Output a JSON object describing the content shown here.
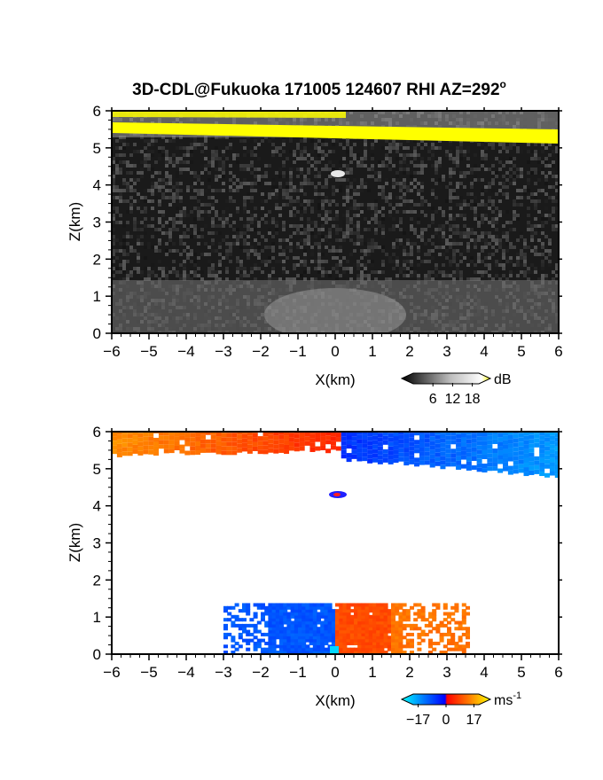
{
  "title": "3D-CDL@Fukuoka 171005 124607 RHI AZ=292",
  "title_superscript": "o",
  "chart_data": [
    {
      "type": "heatmap",
      "quantity": "reflectivity",
      "xlabel": "X(km)",
      "ylabel": "Z(km)",
      "xlim": [
        -6,
        6
      ],
      "ylim": [
        0,
        6
      ],
      "x_ticks": [
        "-6",
        "-5",
        "-4",
        "-3",
        "-2",
        "-1",
        "0",
        "1",
        "2",
        "3",
        "4",
        "5",
        "6"
      ],
      "y_ticks": [
        "0",
        "1",
        "2",
        "3",
        "4",
        "5",
        "6"
      ],
      "colorbar": {
        "unit": "dB",
        "ticks": [
          "6",
          "12",
          "18"
        ],
        "tick_values": [
          6,
          12,
          18
        ],
        "range": [
          0,
          20
        ],
        "colors": [
          "#000000",
          "#ffffff",
          "#ffff00"
        ]
      },
      "features": [
        {
          "kind": "layer",
          "z_top": 6.0,
          "z_bottom": 5.2,
          "x_range": [
            -6,
            6
          ],
          "value_db": 18
        },
        {
          "kind": "blob",
          "x": 0.1,
          "z": 4.3,
          "value_db": 14
        },
        {
          "kind": "boundary-layer",
          "z_top": 1.3,
          "z_bottom": 0.0,
          "x_range": [
            -6,
            6
          ],
          "value_db": 9
        }
      ]
    },
    {
      "type": "heatmap",
      "quantity": "doppler-velocity",
      "xlabel": "X(km)",
      "ylabel": "Z(km)",
      "xlim": [
        -6,
        6
      ],
      "ylim": [
        0,
        6
      ],
      "x_ticks": [
        "-6",
        "-5",
        "-4",
        "-3",
        "-2",
        "-1",
        "0",
        "1",
        "2",
        "3",
        "4",
        "5",
        "6"
      ],
      "y_ticks": [
        "0",
        "1",
        "2",
        "3",
        "4",
        "5",
        "6"
      ],
      "colorbar": {
        "unit": "ms",
        "unit_superscript": "-1",
        "ticks": [
          "-17",
          "0",
          "17"
        ],
        "tick_values": [
          -17,
          0,
          17
        ],
        "range": [
          -20,
          20
        ],
        "colors": [
          "#00ffff",
          "#0000ff",
          "#ff0000",
          "#ffff00"
        ]
      },
      "features": [
        {
          "kind": "layer",
          "x_range": [
            -6,
            0.1
          ],
          "z_top": 6.0,
          "z_bottom": 5.3,
          "velocity": 12
        },
        {
          "kind": "layer",
          "x_range": [
            0.1,
            6
          ],
          "z_top": 6.0,
          "z_bottom": 4.8,
          "velocity": -12
        },
        {
          "kind": "blob",
          "x": 0.1,
          "z": 4.3,
          "velocity": -3
        },
        {
          "kind": "boundary-layer",
          "x_range": [
            -3.0,
            0.0
          ],
          "z_top": 1.3,
          "z_bottom": 0.0,
          "velocity": -8
        },
        {
          "kind": "boundary-layer",
          "x_range": [
            0.0,
            3.5
          ],
          "z_top": 1.3,
          "z_bottom": 0.0,
          "velocity": 8
        }
      ]
    }
  ]
}
